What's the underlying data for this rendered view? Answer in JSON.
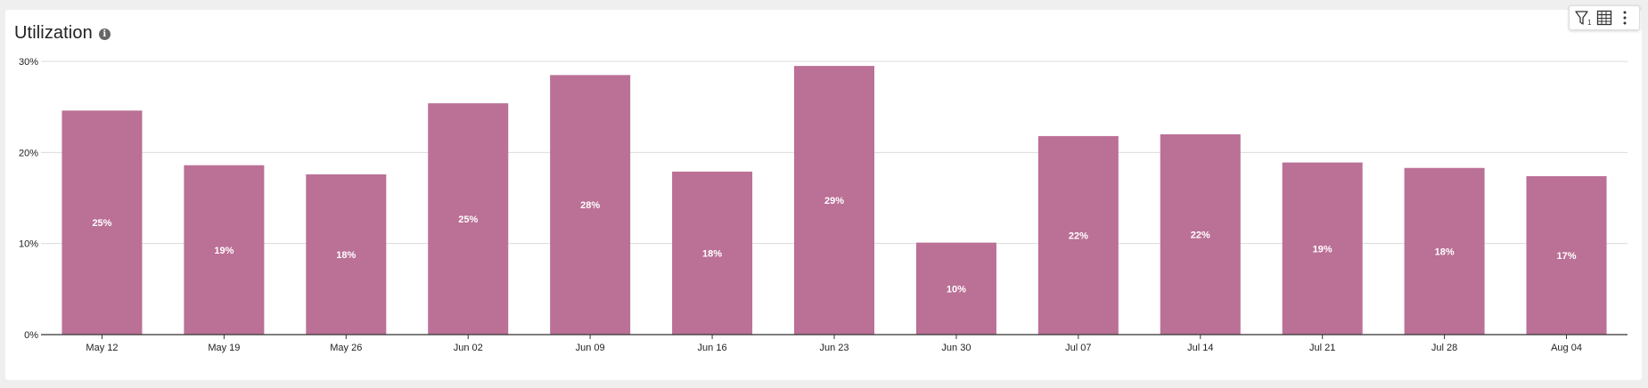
{
  "panel": {
    "title": "Utilization",
    "info_icon": "info-icon",
    "toolbar": {
      "filter_icon": "filter-icon",
      "filter_count": "1",
      "table_icon": "table-icon",
      "more_icon": "more-vertical-icon"
    }
  },
  "colors": {
    "bar": "#bb7096",
    "grid": "#dcdcdc",
    "axis": "#333333",
    "label": "#222222",
    "bar_label": "#ffffff"
  },
  "chart_data": {
    "type": "bar",
    "title": "Utilization",
    "categories": [
      "May 12",
      "May 19",
      "May 26",
      "Jun 02",
      "Jun 09",
      "Jun 16",
      "Jun 23",
      "Jun 30",
      "Jul 07",
      "Jul 14",
      "Jul 21",
      "Jul 28",
      "Aug 04"
    ],
    "values": [
      24.6,
      18.6,
      17.6,
      25.4,
      28.5,
      17.9,
      29.5,
      10.1,
      21.8,
      22.0,
      18.9,
      18.3,
      17.4
    ],
    "data_labels": [
      "25%",
      "19%",
      "18%",
      "25%",
      "28%",
      "18%",
      "29%",
      "10%",
      "22%",
      "22%",
      "19%",
      "18%",
      "17%"
    ],
    "ylim": [
      0,
      30
    ],
    "yticks": [
      0,
      10,
      20,
      30
    ],
    "ytick_labels": [
      "0%",
      "10%",
      "20%",
      "30%"
    ],
    "grid": true,
    "legend": "none"
  }
}
